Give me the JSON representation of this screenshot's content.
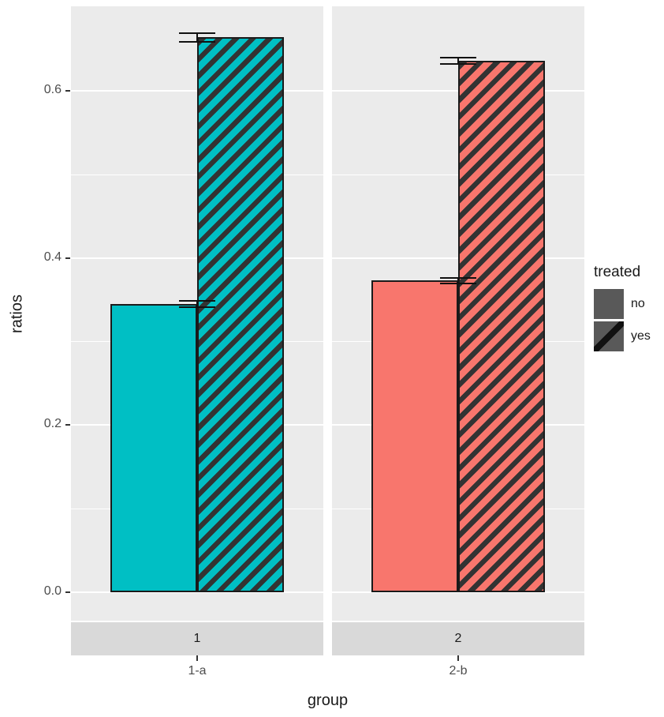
{
  "chart_data": {
    "type": "bar",
    "title": "",
    "xlabel": "group",
    "ylabel": "ratios",
    "ylim": [
      -0.034,
      0.7
    ],
    "y_major_ticks": [
      0.0,
      0.2,
      0.4,
      0.6
    ],
    "y_minor_ticks": [
      0.1,
      0.3,
      0.5
    ],
    "grid": true,
    "facets": [
      {
        "strip_label": "1",
        "x_tick_label": "1-a",
        "bar_color": "#00BFC4",
        "bars": [
          {
            "treated": "no",
            "value": 0.345,
            "error": 0.005,
            "pattern": "none"
          },
          {
            "treated": "yes",
            "value": 0.664,
            "error": 0.006,
            "pattern": "stripe"
          }
        ]
      },
      {
        "strip_label": "2",
        "x_tick_label": "2-b",
        "bar_color": "#F8766D",
        "bars": [
          {
            "treated": "no",
            "value": 0.373,
            "error": 0.004,
            "pattern": "none"
          },
          {
            "treated": "yes",
            "value": 0.636,
            "error": 0.005,
            "pattern": "stripe"
          }
        ]
      }
    ],
    "legend": {
      "title": "treated",
      "position": "right",
      "entries": [
        {
          "label": "no",
          "pattern": "none"
        },
        {
          "label": "yes",
          "pattern": "stripe"
        }
      ]
    },
    "colors": {
      "background": "#FFFFFF",
      "panel_bg": "#EBEBEB",
      "strip_bg": "#D9D9D9",
      "gridline": "#FFFFFF",
      "bar_border": "#1A1A1A",
      "stripe": "#333333",
      "legend_key_fill": "#595959",
      "axis_text": "#4D4D4D",
      "title_text": "#1A1A1A",
      "facet_1_fill": "#00BFC4",
      "facet_2_fill": "#F8766D"
    }
  }
}
